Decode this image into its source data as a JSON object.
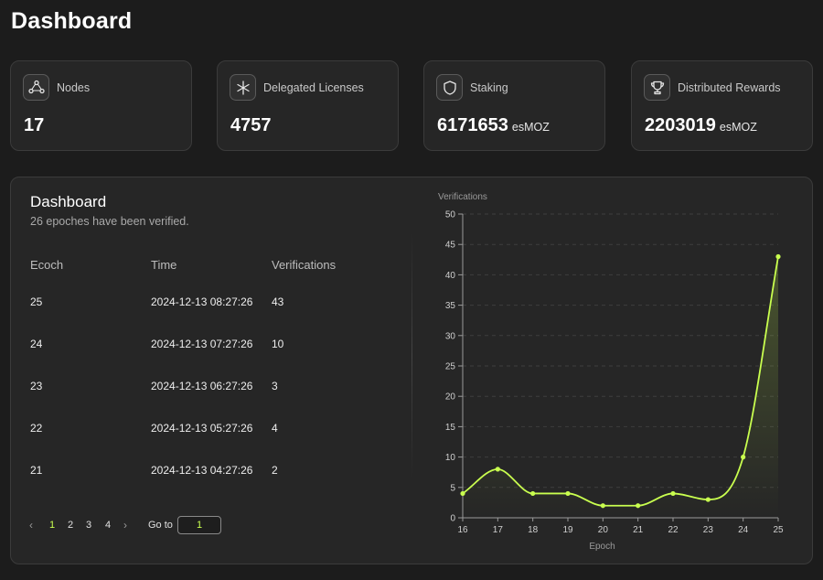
{
  "page": {
    "title": "Dashboard"
  },
  "stats": [
    {
      "label": "Nodes",
      "value": "17",
      "unit": "",
      "icon": "nodes-icon"
    },
    {
      "label": "Delegated Licenses",
      "value": "4757",
      "unit": "",
      "icon": "asterisk-icon"
    },
    {
      "label": "Staking",
      "value": "6171653",
      "unit": "esMOZ",
      "icon": "shield-icon"
    },
    {
      "label": "Distributed Rewards",
      "value": "2203019",
      "unit": "esMOZ",
      "icon": "trophy-icon"
    }
  ],
  "panel": {
    "title": "Dashboard",
    "subtitle": "26 epoches have been verified."
  },
  "table": {
    "headers": [
      "Ecoch",
      "Time",
      "Verifications"
    ],
    "rows": [
      [
        "25",
        "2024-12-13 08:27:26",
        "43"
      ],
      [
        "24",
        "2024-12-13 07:27:26",
        "10"
      ],
      [
        "23",
        "2024-12-13 06:27:26",
        "3"
      ],
      [
        "22",
        "2024-12-13 05:27:26",
        "4"
      ],
      [
        "21",
        "2024-12-13 04:27:26",
        "2"
      ]
    ]
  },
  "pagination": {
    "prev": "‹",
    "next": "›",
    "pages": [
      "1",
      "2",
      "3",
      "4"
    ],
    "active_page": "1",
    "goto_label": "Go to",
    "goto_value": "1"
  },
  "colors": {
    "accent": "#c9ff4f",
    "background": "#1c1c1c",
    "card": "#262626"
  },
  "chart_data": {
    "type": "line",
    "x": [
      16,
      17,
      18,
      19,
      20,
      21,
      22,
      23,
      24,
      25
    ],
    "series": [
      {
        "values": [
          4,
          8,
          4,
          4,
          2,
          2,
          4,
          3,
          10,
          43
        ]
      }
    ],
    "xlabel": "Epoch",
    "ylabel": "Verifications",
    "ylim": [
      0,
      50
    ],
    "yticks": [
      0,
      5,
      10,
      15,
      20,
      25,
      30,
      35,
      40,
      45,
      50
    ],
    "grid": true,
    "smooth": true,
    "line_color": "#c9ff4f"
  }
}
